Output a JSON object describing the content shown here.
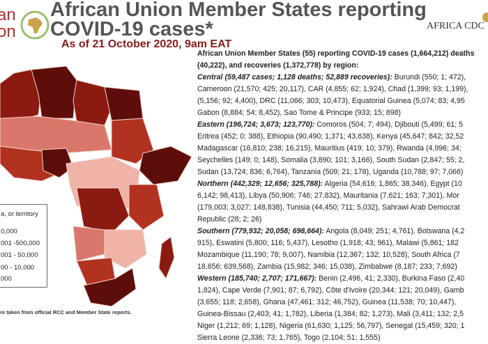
{
  "header": {
    "org_line1": "an",
    "org_line2": "on",
    "title_line1": "African Union Member States reporting",
    "title_line2": "COVID-19 cases*",
    "subtitle": "As of 21 October 2020, 9am EAT",
    "logo_right": "AFRICA CDC",
    "logo_left": "African Union emblem"
  },
  "summary": {
    "lines": [
      {
        "head": "",
        "text": "African Union Member States (55) reporting COVID-19 cases (1,664,212) deaths",
        "bold": true
      },
      {
        "head": "",
        "text": "(40,222), and recoveries (1,372,778) by region:",
        "bold": true
      },
      {
        "head": "Central (59,487 cases; 1,128 deaths; 52,889 recoveries):",
        "text": " Burundi (550; 1; 472),"
      },
      {
        "head": "",
        "text": "Cameroon (21,570; 425; 20,117), CAR (4,855; 62; 1,924), Chad (1,399; 93; 1,199),"
      },
      {
        "head": "",
        "text": "(5,156; 92; 4,400), DRC (11,066; 303; 10,473), Equatorial Guinea (5,074; 83; 4,95"
      },
      {
        "head": "",
        "text": "Gabon (8,884; 54; 8,452), Sao Tome & Principe (933; 15; 898)"
      },
      {
        "head": "Eastern (196,724; 3,673; 123,770):",
        "text": " Comoros (504; 7; 494), Djibouti (5,499; 61; 5"
      },
      {
        "head": "",
        "text": "Eritrea (452; 0; 388), Ethiopia (90,490; 1,371; 43,638), Kenya (45,647; 842; 32,52"
      },
      {
        "head": "",
        "text": "Madagascar (16,810; 238; 16,215), Mauritius (419; 10; 379), Rwanda (4,996; 34;"
      },
      {
        "head": "",
        "text": "Seychelles (149; 0; 148), Somalia (3,890; 101; 3,166), South Sudan (2,847; 55; 2,"
      },
      {
        "head": "",
        "text": "Sudan (13,724; 836; 6,764), Tanzania (509; 21; 178), Uganda (10,788; 97; 7,066)"
      },
      {
        "head": "Northern (442,329; 12,656; 325,788):",
        "text": " Algeria (54,616; 1,865; 38,346), Egypt (10"
      },
      {
        "head": "",
        "text": "6,142; 98,413), Libya (50,906; 746; 27,832), Mauritania (7,621; 163; 7,301), Mor"
      },
      {
        "head": "",
        "text": "(179,003; 3,027; 148,838), Tunisia (44,450; 711; 5,032), Sahrawi Arab Democrat"
      },
      {
        "head": "",
        "text": "Republic (28; 2; 26)"
      },
      {
        "head": "Southern (779,932; 20,058; 698,664):",
        "text": " Angola (8,049; 251; 4,761), Botswana (4,2"
      },
      {
        "head": "",
        "text": "915), Eswatini (5,800; 116; 5,437), Lesotho (1,918; 43; 961), Malawi (5,861; 182"
      },
      {
        "head": "",
        "text": "Mozambique (11,190; 78; 9,007), Namibia (12,367; 132; 10,528), South Africa (7"
      },
      {
        "head": "",
        "text": "18,656; 639,568), Zambia (15,982; 346; 15,038), Zimbabwe (8,187; 233; 7,692)"
      },
      {
        "head": "Western (185,740; 2,707; 171,667):",
        "text": " Benin (2,496, 41; 2,330), Burkina Faso (2,40"
      },
      {
        "head": "",
        "text": "1,824), Cape Verde (7,901; 87; 6,792), Côte d'Ivoire (20,344; 121; 20,049), Gamb"
      },
      {
        "head": "",
        "text": "(3,655; 118; 2,658), Ghana (47,461; 312; 46,752), Guinea (11,538; 70; 10,447),"
      },
      {
        "head": "",
        "text": "Guinea-Bissau (2,403; 41; 1,782), Liberia (1,384; 82; 1,273), Mali (3,411; 132; 2,5"
      },
      {
        "head": "",
        "text": "Niger (1,212; 69; 1,128), Nigeria (61,630; 1,125; 56,797), Senegal (15,459; 320; 1"
      },
      {
        "head": "",
        "text": "Sierra Leone (2,336; 73; 1,765), Togo (2,104; 51; 1,555)"
      }
    ]
  },
  "legend": {
    "title": "a, or territory",
    "items": [
      "0,000",
      "001 -500,000",
      "001 - 50,000",
      "00 - 10,000",
      "000"
    ]
  },
  "footnote": "re taken from official RCC and Member State reports.",
  "colors": {
    "darkest": "#5e0e0a",
    "dark": "#8b1a10",
    "mid": "#b0321f",
    "light": "#d9786a",
    "lightest": "#efb3a8",
    "title": "#555555",
    "subtitle": "#8b1a1a"
  }
}
